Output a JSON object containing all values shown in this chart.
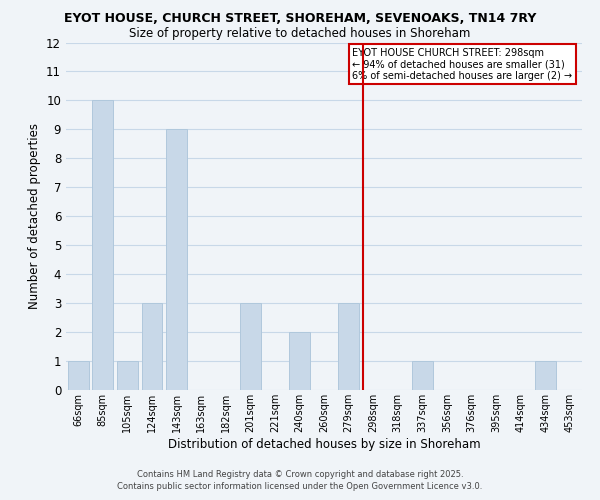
{
  "title": "EYOT HOUSE, CHURCH STREET, SHOREHAM, SEVENOAKS, TN14 7RY",
  "subtitle": "Size of property relative to detached houses in Shoreham",
  "xlabel": "Distribution of detached houses by size in Shoreham",
  "ylabel": "Number of detached properties",
  "bar_labels": [
    "66sqm",
    "85sqm",
    "105sqm",
    "124sqm",
    "143sqm",
    "163sqm",
    "182sqm",
    "201sqm",
    "221sqm",
    "240sqm",
    "260sqm",
    "279sqm",
    "298sqm",
    "318sqm",
    "337sqm",
    "356sqm",
    "376sqm",
    "395sqm",
    "414sqm",
    "434sqm",
    "453sqm"
  ],
  "bar_values": [
    1,
    10,
    1,
    3,
    9,
    0,
    0,
    3,
    0,
    2,
    0,
    3,
    0,
    0,
    1,
    0,
    0,
    0,
    0,
    1,
    0
  ],
  "bar_color": "#c8d8e8",
  "bar_edge_color": "#b0c8dc",
  "vline_index": 12,
  "vline_color": "#cc0000",
  "ylim": [
    0,
    12
  ],
  "yticks": [
    0,
    1,
    2,
    3,
    4,
    5,
    6,
    7,
    8,
    9,
    10,
    11,
    12
  ],
  "grid_color": "#c8d8e8",
  "background_color": "#f0f4f8",
  "annotation_title": "EYOT HOUSE CHURCH STREET: 298sqm",
  "annotation_line1": "← 94% of detached houses are smaller (31)",
  "annotation_line2": "6% of semi-detached houses are larger (2) →",
  "footer_line1": "Contains HM Land Registry data © Crown copyright and database right 2025.",
  "footer_line2": "Contains public sector information licensed under the Open Government Licence v3.0."
}
